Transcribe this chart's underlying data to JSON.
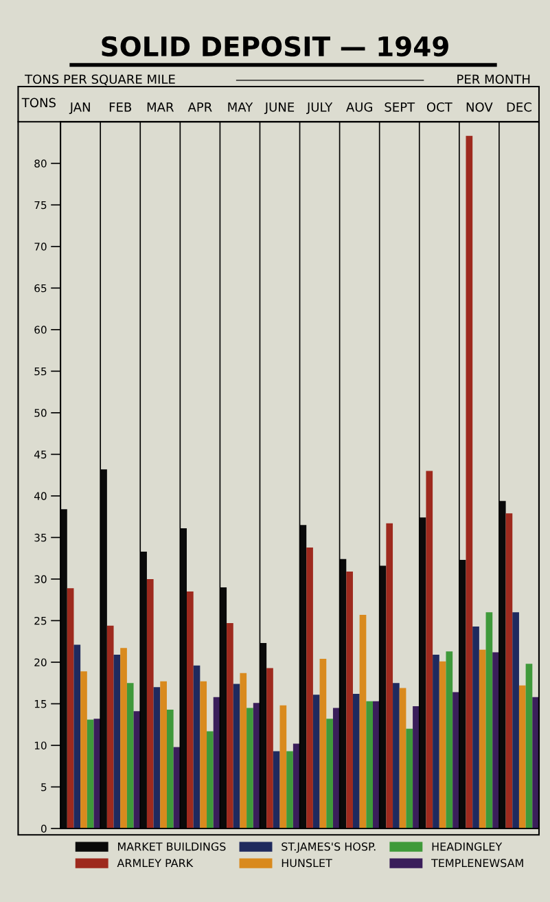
{
  "chart_data": {
    "type": "bar",
    "title": "SOLID DEPOSIT — 1949",
    "subtitle": "TONS PER SQUARE MILE",
    "ylabel": "TONS",
    "annotations": [
      "PER MONTH"
    ],
    "categories": [
      "JAN",
      "FEB",
      "MAR",
      "APR",
      "MAY",
      "JUNE",
      "JULY",
      "AUG",
      "SEPT",
      "OCT",
      "NOV",
      "DEC"
    ],
    "series": [
      {
        "name": "MARKET BUILDINGS",
        "color": "#0a0a0a",
        "values": [
          38.4,
          43.2,
          33.3,
          36.1,
          29.0,
          22.3,
          36.5,
          32.4,
          31.6,
          37.4,
          32.3,
          39.4
        ]
      },
      {
        "name": "ARMLEY PARK",
        "color": "#9e2a1e",
        "values": [
          28.9,
          24.4,
          30.0,
          28.5,
          24.7,
          19.3,
          33.8,
          30.9,
          36.7,
          43.0,
          83.3,
          37.9
        ]
      },
      {
        "name": "ST.JAMES'S HOSP.",
        "color": "#1f2a5e",
        "values": [
          22.1,
          20.9,
          17.0,
          19.6,
          17.4,
          9.3,
          16.1,
          16.2,
          17.5,
          20.9,
          24.3,
          26.0
        ]
      },
      {
        "name": "HUNSLET",
        "color": "#d98a1e",
        "values": [
          18.9,
          21.7,
          17.7,
          17.7,
          18.7,
          14.8,
          20.4,
          25.7,
          16.9,
          20.1,
          21.5,
          17.2
        ]
      },
      {
        "name": "HEADINGLEY",
        "color": "#3f9a3a",
        "values": [
          13.1,
          17.5,
          14.3,
          11.7,
          14.5,
          9.3,
          13.2,
          15.3,
          12.0,
          21.3,
          26.0,
          19.8
        ]
      },
      {
        "name": "TEMPLENEWSAM",
        "color": "#3a1e5a",
        "values": [
          13.2,
          14.1,
          9.8,
          15.8,
          15.1,
          10.2,
          14.5,
          15.3,
          14.7,
          16.4,
          21.2,
          15.8
        ]
      }
    ],
    "ylim": [
      0,
      85
    ],
    "yticks": [
      0,
      5,
      10,
      15,
      20,
      25,
      30,
      35,
      40,
      45,
      50,
      55,
      60,
      65,
      70,
      75,
      80
    ],
    "grid": "x",
    "legend": "bottom"
  }
}
